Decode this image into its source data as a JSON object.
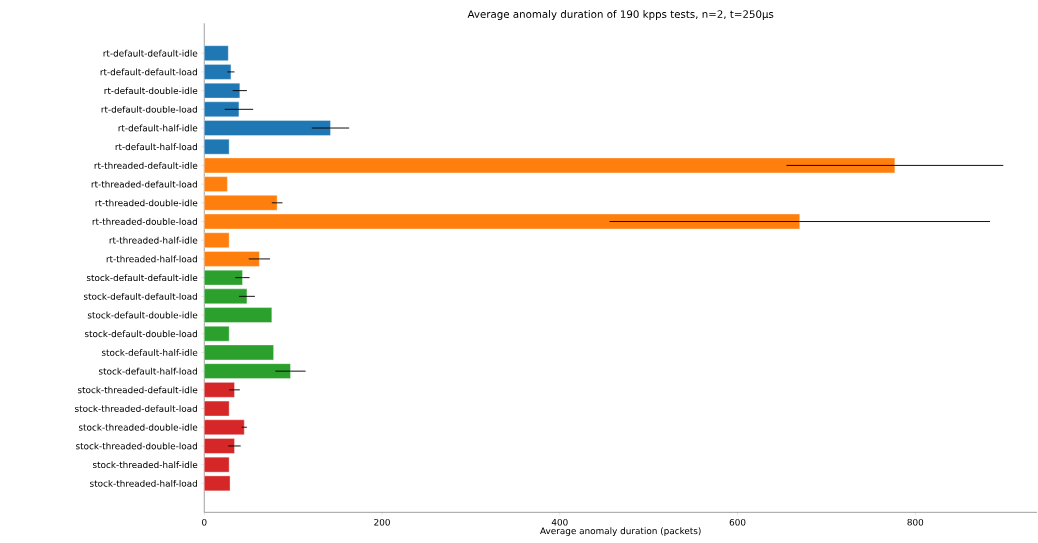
{
  "chart_data": {
    "type": "bar",
    "orientation": "horizontal",
    "title": "Average anomaly duration of 190 kpps tests, n=2, t=250µs",
    "xlabel": "Average anomaly duration (packets)",
    "categories": [
      "rt-default-default-idle",
      "rt-default-default-load",
      "rt-default-double-idle",
      "rt-default-double-load",
      "rt-default-half-idle",
      "rt-default-half-load",
      "rt-threaded-default-idle",
      "rt-threaded-default-load",
      "rt-threaded-double-idle",
      "rt-threaded-double-load",
      "rt-threaded-half-idle",
      "rt-threaded-half-load",
      "stock-default-default-idle",
      "stock-default-default-load",
      "stock-default-double-idle",
      "stock-default-double-load",
      "stock-default-half-idle",
      "stock-default-half-load",
      "stock-threaded-default-idle",
      "stock-threaded-default-load",
      "stock-threaded-double-idle",
      "stock-threaded-double-load",
      "stock-threaded-half-idle",
      "stock-threaded-half-load"
    ],
    "values": [
      27,
      30,
      40,
      39,
      142,
      28,
      777,
      26,
      82,
      670,
      28,
      62,
      43,
      48,
      76,
      28,
      78,
      97,
      34,
      28,
      45,
      34,
      28,
      29
    ],
    "errors": [
      null,
      4,
      8,
      16,
      21,
      null,
      122,
      null,
      6,
      214,
      null,
      12,
      8,
      9,
      null,
      null,
      null,
      17,
      6,
      null,
      3,
      7,
      null,
      null
    ],
    "colors": [
      "#1f77b4",
      "#1f77b4",
      "#1f77b4",
      "#1f77b4",
      "#1f77b4",
      "#1f77b4",
      "#ff7f0e",
      "#ff7f0e",
      "#ff7f0e",
      "#ff7f0e",
      "#ff7f0e",
      "#ff7f0e",
      "#2ca02c",
      "#2ca02c",
      "#2ca02c",
      "#2ca02c",
      "#2ca02c",
      "#2ca02c",
      "#d62728",
      "#d62728",
      "#d62728",
      "#d62728",
      "#d62728",
      "#d62728"
    ],
    "xlim": [
      0,
      937
    ],
    "xticks": [
      0,
      200,
      400,
      600,
      800
    ]
  }
}
